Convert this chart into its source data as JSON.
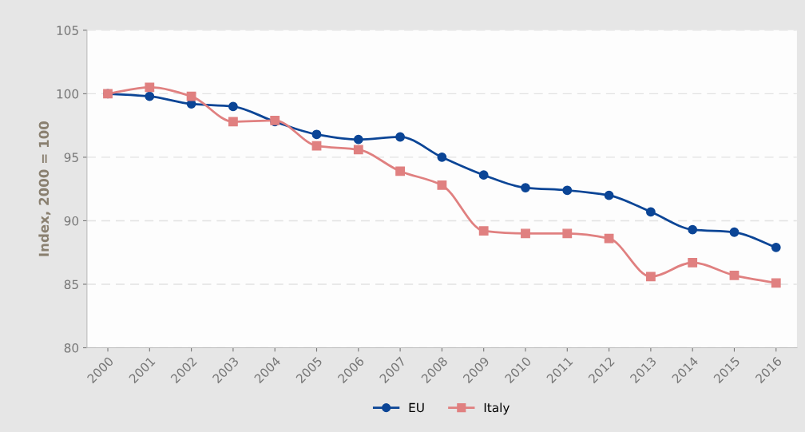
{
  "chart_data": {
    "type": "line",
    "ylabel": "Index, 2000 = 100",
    "categories": [
      "2000",
      "2001",
      "2002",
      "2003",
      "2004",
      "2005",
      "2006",
      "2007",
      "2008",
      "2009",
      "2010",
      "2011",
      "2012",
      "2013",
      "2014",
      "2015",
      "2016"
    ],
    "series": [
      {
        "name": "EU",
        "color": "#0b4596",
        "marker": "circle",
        "values": [
          100,
          99.8,
          99.2,
          99.0,
          97.8,
          96.8,
          96.4,
          96.6,
          95.0,
          93.6,
          92.6,
          92.4,
          92.0,
          90.7,
          89.3,
          89.1,
          87.9
        ]
      },
      {
        "name": "Italy",
        "color": "#e08080",
        "marker": "square",
        "values": [
          100,
          100.5,
          99.8,
          97.8,
          97.9,
          95.9,
          95.6,
          93.9,
          92.8,
          89.2,
          89.0,
          89.0,
          88.6,
          85.6,
          86.7,
          85.7,
          85.1
        ]
      }
    ],
    "ylim": [
      80,
      105
    ],
    "yticks": [
      80,
      85,
      90,
      95,
      100,
      105
    ],
    "grid": "y",
    "legend": "bottom",
    "line_style": "solid"
  }
}
